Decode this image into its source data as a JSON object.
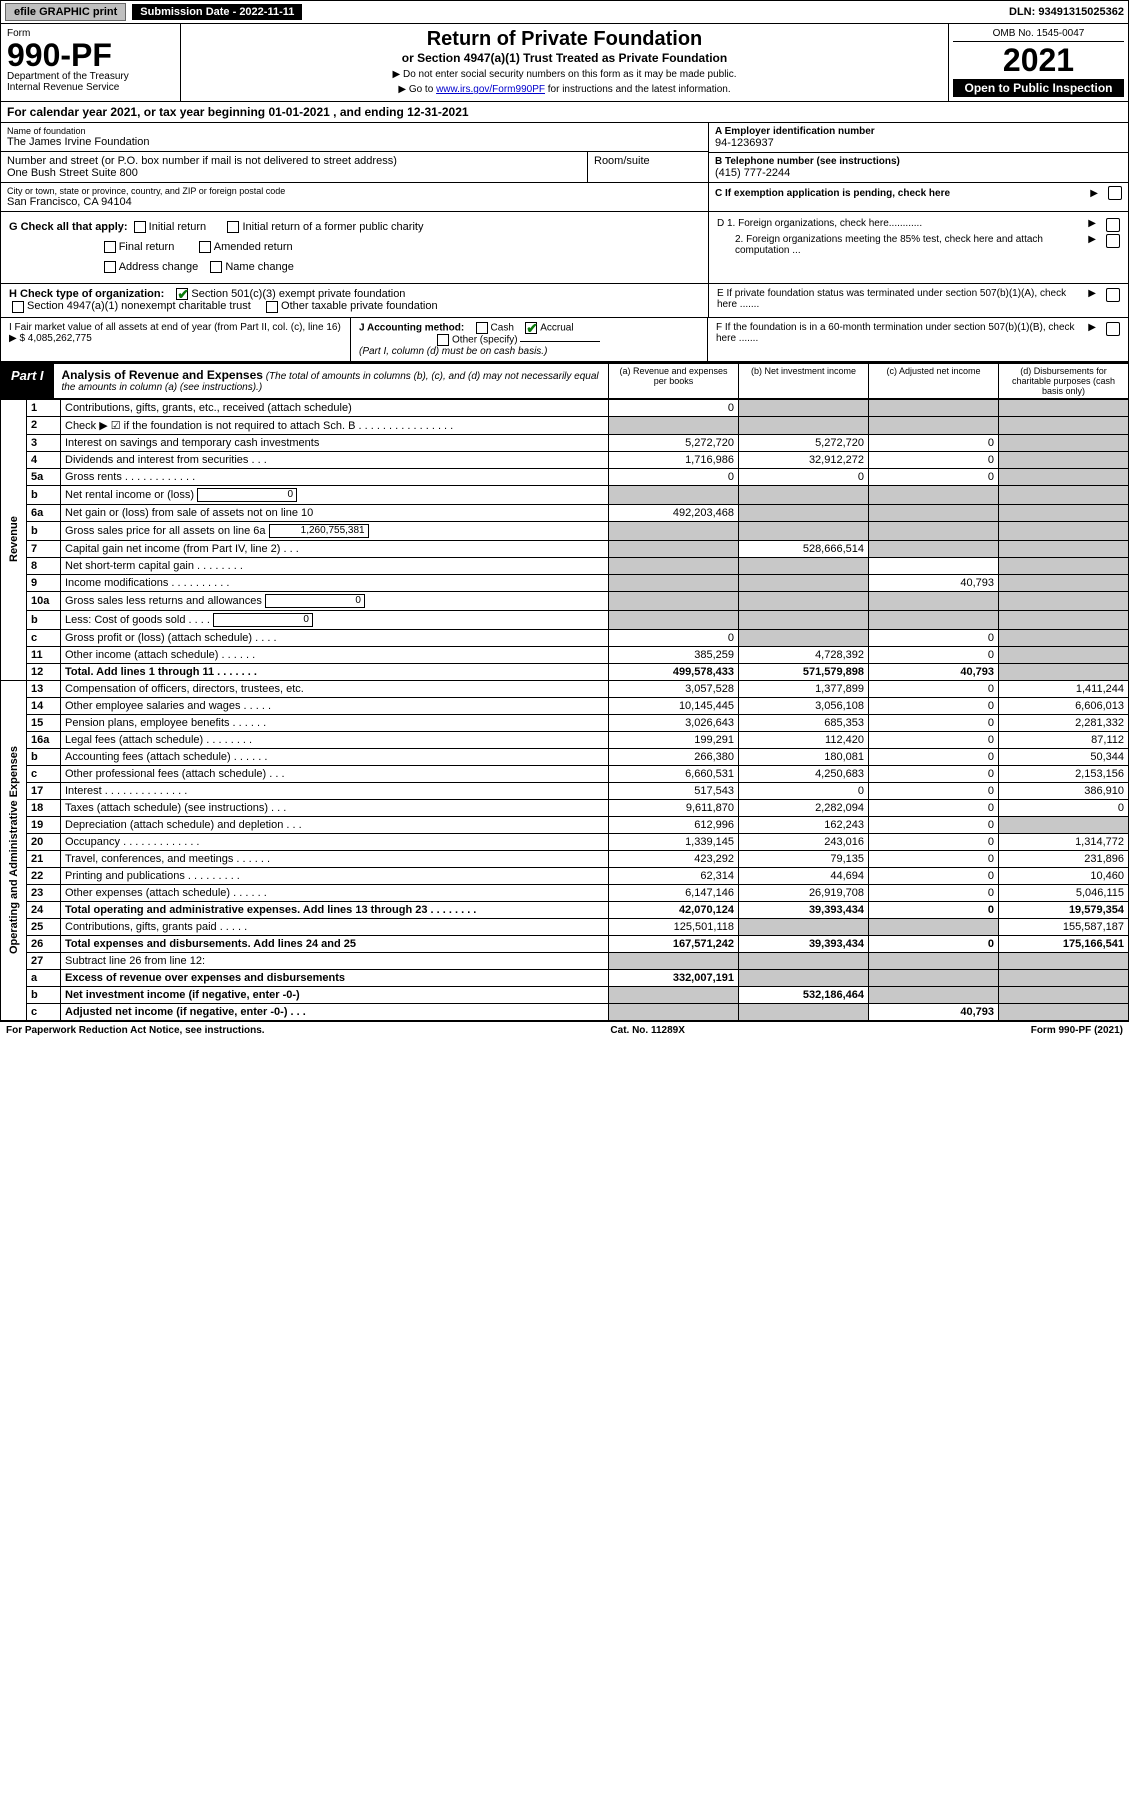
{
  "top": {
    "efile": "efile GRAPHIC print",
    "sub_date_lbl": "Submission Date - 2022-11-11",
    "dln": "DLN: 93491315025362"
  },
  "header": {
    "form_word": "Form",
    "form_no": "990-PF",
    "dept": "Department of the Treasury",
    "irs": "Internal Revenue Service",
    "title": "Return of Private Foundation",
    "subtitle": "or Section 4947(a)(1) Trust Treated as Private Foundation",
    "note1": "▶ Do not enter social security numbers on this form as it may be made public.",
    "note2_pre": "▶ Go to ",
    "note2_link": "www.irs.gov/Form990PF",
    "note2_post": " for instructions and the latest information.",
    "omb": "OMB No. 1545-0047",
    "year": "2021",
    "open": "Open to Public Inspection"
  },
  "calyear": "For calendar year 2021, or tax year beginning 01-01-2021          , and ending 12-31-2021",
  "info": {
    "name_lbl": "Name of foundation",
    "name": "The James Irvine Foundation",
    "addr_lbl": "Number and street (or P.O. box number if mail is not delivered to street address)",
    "addr": "One Bush Street Suite 800",
    "room_lbl": "Room/suite",
    "city_lbl": "City or town, state or province, country, and ZIP or foreign postal code",
    "city": "San Francisco, CA  94104",
    "ein_lbl": "A Employer identification number",
    "ein": "94-1236937",
    "tel_lbl": "B Telephone number (see instructions)",
    "tel": "(415) 777-2244",
    "c_lbl": "C If exemption application is pending, check here"
  },
  "g": {
    "label": "G Check all that apply:",
    "opts": [
      "Initial return",
      "Final return",
      "Address change",
      "Initial return of a former public charity",
      "Amended return",
      "Name change"
    ]
  },
  "d": {
    "d1": "D 1. Foreign organizations, check here............",
    "d2": "2. Foreign organizations meeting the 85% test, check here and attach computation ...",
    "e": "E  If private foundation status was terminated under section 507(b)(1)(A), check here .......",
    "f": "F  If the foundation is in a 60-month termination under section 507(b)(1)(B), check here ......."
  },
  "h": {
    "label": "H Check type of organization:",
    "o1": "Section 501(c)(3) exempt private foundation",
    "o2": "Section 4947(a)(1) nonexempt charitable trust",
    "o3": "Other taxable private foundation"
  },
  "i": {
    "label": "I Fair market value of all assets at end of year (from Part II, col. (c), line 16)",
    "val": "▶ $  4,085,262,775"
  },
  "j": {
    "label": "J Accounting method:",
    "cash": "Cash",
    "accrual": "Accrual",
    "other": "Other (specify)",
    "note": "(Part I, column (d) must be on cash basis.)"
  },
  "part1": {
    "label": "Part I",
    "title": "Analysis of Revenue and Expenses",
    "note": " (The total of amounts in columns (b), (c), and (d) may not necessarily equal the amounts in column (a) (see instructions).)",
    "col_a": "(a)   Revenue and expenses per books",
    "col_b": "(b)   Net investment income",
    "col_c": "(c)   Adjusted net income",
    "col_d": "(d)   Disbursements for charitable purposes (cash basis only)"
  },
  "side": {
    "revenue": "Revenue",
    "expenses": "Operating and Administrative Expenses"
  },
  "rows": [
    {
      "n": "1",
      "d": "Contributions, gifts, grants, etc., received (attach schedule)",
      "a": "0",
      "b": "",
      "c": "",
      "dd": "",
      "shade_b": true,
      "shade_c": true,
      "shade_d": true
    },
    {
      "n": "2",
      "d": "Check ▶ ☑ if the foundation is not required to attach Sch. B     .  .  .  .  .  .  .  .  .  .  .  .  .  .  .  .",
      "a": "",
      "b": "",
      "c": "",
      "dd": "",
      "shade_a": true,
      "shade_b": true,
      "shade_c": true,
      "shade_d": true,
      "no_bottom": true
    },
    {
      "n": "3",
      "d": "Interest on savings and temporary cash investments",
      "a": "5,272,720",
      "b": "5,272,720",
      "c": "0",
      "dd": "",
      "shade_d": true
    },
    {
      "n": "4",
      "d": "Dividends and interest from securities    .   .   .",
      "a": "1,716,986",
      "b": "32,912,272",
      "c": "0",
      "dd": "",
      "shade_d": true
    },
    {
      "n": "5a",
      "d": "Gross rents     .   .   .   .   .   .   .   .   .   .   .   .",
      "a": "0",
      "b": "0",
      "c": "0",
      "dd": "",
      "shade_d": true
    },
    {
      "n": "b",
      "d": "Net rental income or (loss)",
      "a": "",
      "b": "",
      "c": "",
      "dd": "",
      "mini": "0",
      "shade_a": true,
      "shade_b": true,
      "shade_c": true,
      "shade_d": true
    },
    {
      "n": "6a",
      "d": "Net gain or (loss) from sale of assets not on line 10",
      "a": "492,203,468",
      "b": "",
      "c": "",
      "dd": "",
      "shade_b": true,
      "shade_c": true,
      "shade_d": true
    },
    {
      "n": "b",
      "d": "Gross sales price for all assets on line 6a",
      "a": "",
      "b": "",
      "c": "",
      "dd": "",
      "mini": "1,260,755,381",
      "shade_a": true,
      "shade_b": true,
      "shade_c": true,
      "shade_d": true
    },
    {
      "n": "7",
      "d": "Capital gain net income (from Part IV, line 2)    .   .   .",
      "a": "",
      "b": "528,666,514",
      "c": "",
      "dd": "",
      "shade_a": true,
      "shade_c": true,
      "shade_d": true
    },
    {
      "n": "8",
      "d": "Net short-term capital gain   .   .   .   .   .   .   .   .",
      "a": "",
      "b": "",
      "c": "",
      "dd": "",
      "shade_a": true,
      "shade_b": true,
      "shade_d": true
    },
    {
      "n": "9",
      "d": "Income modifications  .   .   .   .   .   .   .   .   .   .",
      "a": "",
      "b": "",
      "c": "40,793",
      "dd": "",
      "shade_a": true,
      "shade_b": true,
      "shade_d": true
    },
    {
      "n": "10a",
      "d": "Gross sales less returns and allowances",
      "a": "",
      "b": "",
      "c": "",
      "dd": "",
      "mini": "0",
      "shade_a": true,
      "shade_b": true,
      "shade_c": true,
      "shade_d": true
    },
    {
      "n": "b",
      "d": "Less: Cost of goods sold     .   .   .   .",
      "a": "",
      "b": "",
      "c": "",
      "dd": "",
      "mini": "0",
      "shade_a": true,
      "shade_b": true,
      "shade_c": true,
      "shade_d": true
    },
    {
      "n": "c",
      "d": "Gross profit or (loss) (attach schedule)     .   .   .   .",
      "a": "0",
      "b": "",
      "c": "0",
      "dd": "",
      "shade_b": true,
      "shade_d": true
    },
    {
      "n": "11",
      "d": "Other income (attach schedule)    .   .   .   .   .   .",
      "a": "385,259",
      "b": "4,728,392",
      "c": "0",
      "dd": "",
      "shade_d": true
    },
    {
      "n": "12",
      "d": "Total. Add lines 1 through 11    .   .   .   .   .   .   .",
      "a": "499,578,433",
      "b": "571,579,898",
      "c": "40,793",
      "dd": "",
      "bold": true,
      "shade_d": true
    }
  ],
  "exp_rows": [
    {
      "n": "13",
      "d": "Compensation of officers, directors, trustees, etc.",
      "a": "3,057,528",
      "b": "1,377,899",
      "c": "0",
      "dd": "1,411,244"
    },
    {
      "n": "14",
      "d": "Other employee salaries and wages   .   .   .   .   .",
      "a": "10,145,445",
      "b": "3,056,108",
      "c": "0",
      "dd": "6,606,013"
    },
    {
      "n": "15",
      "d": "Pension plans, employee benefits  .   .   .   .   .   .",
      "a": "3,026,643",
      "b": "685,353",
      "c": "0",
      "dd": "2,281,332"
    },
    {
      "n": "16a",
      "d": "Legal fees (attach schedule) .   .   .   .   .   .   .   .",
      "a": "199,291",
      "b": "112,420",
      "c": "0",
      "dd": "87,112"
    },
    {
      "n": "b",
      "d": "Accounting fees (attach schedule)  .   .   .   .   .   .",
      "a": "266,380",
      "b": "180,081",
      "c": "0",
      "dd": "50,344"
    },
    {
      "n": "c",
      "d": "Other professional fees (attach schedule)     .   .   .",
      "a": "6,660,531",
      "b": "4,250,683",
      "c": "0",
      "dd": "2,153,156"
    },
    {
      "n": "17",
      "d": "Interest  .   .   .   .   .   .   .   .   .   .   .   .   .   .",
      "a": "517,543",
      "b": "0",
      "c": "0",
      "dd": "386,910"
    },
    {
      "n": "18",
      "d": "Taxes (attach schedule) (see instructions)      .   .   .",
      "a": "9,611,870",
      "b": "2,282,094",
      "c": "0",
      "dd": "0"
    },
    {
      "n": "19",
      "d": "Depreciation (attach schedule) and depletion    .   .   .",
      "a": "612,996",
      "b": "162,243",
      "c": "0",
      "dd": "",
      "shade_d": true
    },
    {
      "n": "20",
      "d": "Occupancy .   .   .   .   .   .   .   .   .   .   .   .   .",
      "a": "1,339,145",
      "b": "243,016",
      "c": "0",
      "dd": "1,314,772"
    },
    {
      "n": "21",
      "d": "Travel, conferences, and meetings  .   .   .   .   .   .",
      "a": "423,292",
      "b": "79,135",
      "c": "0",
      "dd": "231,896"
    },
    {
      "n": "22",
      "d": "Printing and publications  .   .   .   .   .   .   .   .   .",
      "a": "62,314",
      "b": "44,694",
      "c": "0",
      "dd": "10,460"
    },
    {
      "n": "23",
      "d": "Other expenses (attach schedule)  .   .   .   .   .   .",
      "a": "6,147,146",
      "b": "26,919,708",
      "c": "0",
      "dd": "5,046,115"
    },
    {
      "n": "24",
      "d": "Total operating and administrative expenses. Add lines 13 through 23   .   .   .   .   .   .   .   .",
      "a": "42,070,124",
      "b": "39,393,434",
      "c": "0",
      "dd": "19,579,354",
      "bold": true
    },
    {
      "n": "25",
      "d": "Contributions, gifts, grants paid      .   .   .   .   .",
      "a": "125,501,118",
      "b": "",
      "c": "",
      "dd": "155,587,187",
      "shade_b": true,
      "shade_c": true
    },
    {
      "n": "26",
      "d": "Total expenses and disbursements. Add lines 24 and 25",
      "a": "167,571,242",
      "b": "39,393,434",
      "c": "0",
      "dd": "175,166,541",
      "bold": true
    },
    {
      "n": "27",
      "d": "Subtract line 26 from line 12:",
      "a": "",
      "b": "",
      "c": "",
      "dd": "",
      "shade_a": true,
      "shade_b": true,
      "shade_c": true,
      "shade_d": true
    },
    {
      "n": "a",
      "d": "Excess of revenue over expenses and disbursements",
      "a": "332,007,191",
      "b": "",
      "c": "",
      "dd": "",
      "bold": true,
      "shade_b": true,
      "shade_c": true,
      "shade_d": true
    },
    {
      "n": "b",
      "d": "Net investment income (if negative, enter -0-)",
      "a": "",
      "b": "532,186,464",
      "c": "",
      "dd": "",
      "bold": true,
      "shade_a": true,
      "shade_c": true,
      "shade_d": true
    },
    {
      "n": "c",
      "d": "Adjusted net income (if negative, enter -0-)   .   .   .",
      "a": "",
      "b": "",
      "c": "40,793",
      "dd": "",
      "bold": true,
      "shade_a": true,
      "shade_b": true,
      "shade_d": true
    }
  ],
  "footer": {
    "left": "For Paperwork Reduction Act Notice, see instructions.",
    "mid": "Cat. No. 11289X",
    "right": "Form 990-PF (2021)"
  }
}
